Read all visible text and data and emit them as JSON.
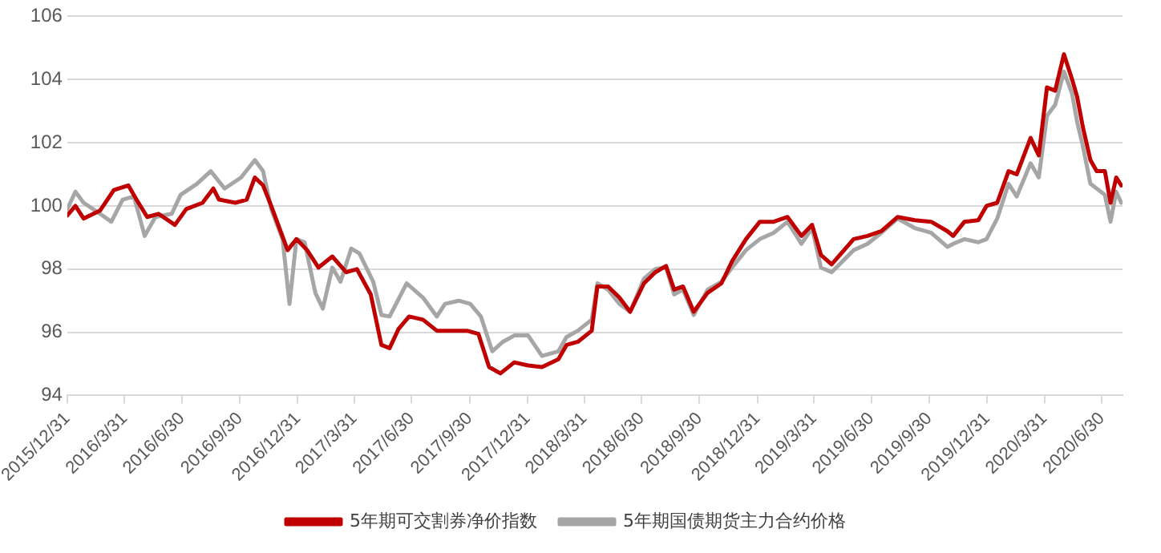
{
  "chart_data": {
    "type": "line",
    "xlim": [
      "2015-12-31",
      "2020-08-02"
    ],
    "xticks": [
      {
        "value": "2015-12-31",
        "label": "2015/12/31"
      },
      {
        "value": "2016-03-31",
        "label": "2016/3/31"
      },
      {
        "value": "2016-06-30",
        "label": "2016/6/30"
      },
      {
        "value": "2016-09-30",
        "label": "2016/9/30"
      },
      {
        "value": "2016-12-31",
        "label": "2016/12/31"
      },
      {
        "value": "2017-03-31",
        "label": "2017/3/31"
      },
      {
        "value": "2017-06-30",
        "label": "2017/6/30"
      },
      {
        "value": "2017-09-30",
        "label": "2017/9/30"
      },
      {
        "value": "2017-12-31",
        "label": "2017/12/31"
      },
      {
        "value": "2018-03-31",
        "label": "2018/3/31"
      },
      {
        "value": "2018-06-30",
        "label": "2018/6/30"
      },
      {
        "value": "2018-09-30",
        "label": "2018/9/30"
      },
      {
        "value": "2018-12-31",
        "label": "2018/12/31"
      },
      {
        "value": "2019-03-31",
        "label": "2019/3/31"
      },
      {
        "value": "2019-06-30",
        "label": "2019/6/30"
      },
      {
        "value": "2019-09-30",
        "label": "2019/9/30"
      },
      {
        "value": "2019-12-31",
        "label": "2019/12/31"
      },
      {
        "value": "2020-03-31",
        "label": "2020/3/31"
      },
      {
        "value": "2020-06-30",
        "label": "2020/6/30"
      }
    ],
    "ylim": [
      94,
      106
    ],
    "yticks": [
      94,
      96,
      98,
      100,
      102,
      104,
      106
    ],
    "grid": "y",
    "legend": "bottom",
    "marker": "none",
    "line_style": "solid",
    "series": [
      {
        "name": "5年期可交割券净价指数",
        "color": "#c00000",
        "x": [
          "2015-12-31",
          "2016-01-13",
          "2016-01-26",
          "2016-02-21",
          "2016-03-14",
          "2016-04-06",
          "2016-04-19",
          "2016-05-06",
          "2016-05-24",
          "2016-06-19",
          "2016-07-07",
          "2016-08-02",
          "2016-08-19",
          "2016-08-28",
          "2016-09-23",
          "2016-10-11",
          "2016-10-24",
          "2016-11-06",
          "2016-11-19",
          "2016-12-02",
          "2016-12-15",
          "2016-12-29",
          "2017-01-15",
          "2017-02-02",
          "2017-02-24",
          "2017-03-18",
          "2017-04-04",
          "2017-04-26",
          "2017-05-13",
          "2017-05-26",
          "2017-06-09",
          "2017-06-26",
          "2017-07-18",
          "2017-08-09",
          "2017-08-31",
          "2017-09-26",
          "2017-10-14",
          "2017-10-31",
          "2017-11-18",
          "2017-12-10",
          "2018-01-01",
          "2018-01-23",
          "2018-02-18",
          "2018-03-03",
          "2018-03-21",
          "2018-04-12",
          "2018-04-21",
          "2018-05-08",
          "2018-05-26",
          "2018-06-12",
          "2018-07-04",
          "2018-07-22",
          "2018-08-08",
          "2018-08-21",
          "2018-09-04",
          "2018-09-21",
          "2018-10-13",
          "2018-11-04",
          "2018-11-21",
          "2018-12-13",
          "2019-01-04",
          "2019-01-26",
          "2019-02-17",
          "2019-03-11",
          "2019-03-28",
          "2019-04-11",
          "2019-04-28",
          "2019-06-02",
          "2019-06-24",
          "2019-07-16",
          "2019-08-11",
          "2019-09-07",
          "2019-10-03",
          "2019-10-29",
          "2019-11-07",
          "2019-11-25",
          "2019-12-17",
          "2019-12-30",
          "2020-01-16",
          "2020-02-03",
          "2020-02-16",
          "2020-03-09",
          "2020-03-22",
          "2020-04-04",
          "2020-04-17",
          "2020-05-01",
          "2020-05-14",
          "2020-05-22",
          "2020-05-31",
          "2020-06-12",
          "2020-06-22",
          "2020-07-05",
          "2020-07-14",
          "2020-07-23",
          "2020-07-31"
        ],
        "values": [
          99.7,
          100.0,
          99.6,
          99.85,
          100.5,
          100.65,
          100.2,
          99.65,
          99.75,
          99.4,
          99.9,
          100.1,
          100.55,
          100.2,
          100.1,
          100.2,
          100.9,
          100.65,
          100.0,
          99.3,
          98.6,
          98.95,
          98.6,
          98.05,
          98.4,
          97.9,
          98.0,
          97.2,
          95.6,
          95.5,
          96.1,
          96.5,
          96.4,
          96.05,
          96.05,
          96.05,
          95.95,
          94.9,
          94.7,
          95.05,
          94.95,
          94.9,
          95.15,
          95.6,
          95.7,
          96.05,
          97.45,
          97.45,
          97.1,
          96.65,
          97.55,
          97.9,
          98.1,
          97.35,
          97.45,
          96.65,
          97.25,
          97.55,
          98.25,
          98.95,
          99.5,
          99.5,
          99.65,
          99.05,
          99.4,
          98.45,
          98.15,
          98.95,
          99.05,
          99.2,
          99.65,
          99.55,
          99.5,
          99.2,
          99.05,
          99.5,
          99.55,
          100.0,
          100.1,
          101.1,
          101.0,
          102.15,
          101.6,
          103.75,
          103.65,
          104.8,
          104.0,
          103.45,
          102.5,
          101.45,
          101.1,
          101.1,
          100.1,
          100.9,
          100.65
        ]
      },
      {
        "name": "5年期国债期货主力合约价格",
        "color": "#a6a6a6",
        "x": [
          "2015-12-31",
          "2016-01-13",
          "2016-01-26",
          "2016-02-21",
          "2016-03-10",
          "2016-03-28",
          "2016-04-15",
          "2016-05-02",
          "2016-05-19",
          "2016-06-14",
          "2016-06-28",
          "2016-07-24",
          "2016-08-15",
          "2016-09-06",
          "2016-10-02",
          "2016-10-24",
          "2016-11-06",
          "2016-11-19",
          "2016-12-07",
          "2016-12-18",
          "2016-12-29",
          "2017-01-11",
          "2017-01-28",
          "2017-02-09",
          "2017-02-24",
          "2017-03-09",
          "2017-03-26",
          "2017-04-08",
          "2017-04-30",
          "2017-05-13",
          "2017-05-26",
          "2017-06-22",
          "2017-07-18",
          "2017-08-09",
          "2017-08-22",
          "2017-09-13",
          "2017-10-01",
          "2017-10-18",
          "2017-11-05",
          "2017-11-22",
          "2017-12-10",
          "2018-01-01",
          "2018-01-23",
          "2018-02-18",
          "2018-03-03",
          "2018-03-21",
          "2018-04-12",
          "2018-04-21",
          "2018-05-08",
          "2018-05-26",
          "2018-06-12",
          "2018-07-04",
          "2018-07-22",
          "2018-08-08",
          "2018-08-21",
          "2018-09-04",
          "2018-09-21",
          "2018-10-13",
          "2018-11-04",
          "2018-11-21",
          "2018-12-13",
          "2019-01-04",
          "2019-01-26",
          "2019-02-17",
          "2019-03-11",
          "2019-03-28",
          "2019-04-11",
          "2019-04-28",
          "2019-06-02",
          "2019-06-24",
          "2019-07-16",
          "2019-08-11",
          "2019-09-07",
          "2019-10-03",
          "2019-10-29",
          "2019-11-07",
          "2019-11-25",
          "2019-12-17",
          "2019-12-30",
          "2020-01-16",
          "2020-02-03",
          "2020-02-16",
          "2020-03-09",
          "2020-03-22",
          "2020-04-04",
          "2020-04-17",
          "2020-05-01",
          "2020-05-14",
          "2020-05-22",
          "2020-05-31",
          "2020-06-12",
          "2020-06-22",
          "2020-07-05",
          "2020-07-14",
          "2020-07-23",
          "2020-07-31"
        ],
        "values": [
          99.9,
          100.45,
          100.1,
          99.75,
          99.5,
          100.2,
          100.3,
          99.05,
          99.65,
          99.75,
          100.35,
          100.7,
          101.1,
          100.55,
          100.9,
          101.45,
          101.1,
          99.9,
          98.95,
          96.9,
          98.95,
          98.85,
          97.25,
          96.75,
          98.05,
          97.6,
          98.65,
          98.5,
          97.6,
          96.55,
          96.5,
          97.55,
          97.1,
          96.5,
          96.9,
          97.0,
          96.9,
          96.5,
          95.4,
          95.7,
          95.9,
          95.9,
          95.25,
          95.4,
          95.85,
          96.05,
          96.4,
          97.55,
          97.35,
          96.9,
          96.65,
          97.7,
          98.0,
          98.05,
          97.2,
          97.35,
          96.55,
          97.35,
          97.6,
          98.05,
          98.6,
          98.95,
          99.15,
          99.5,
          98.8,
          99.3,
          98.05,
          97.9,
          98.6,
          98.8,
          99.15,
          99.6,
          99.3,
          99.15,
          98.7,
          98.8,
          98.95,
          98.85,
          98.95,
          99.6,
          100.7,
          100.3,
          101.35,
          100.9,
          102.85,
          103.2,
          104.25,
          103.55,
          102.65,
          101.9,
          100.7,
          100.55,
          100.35,
          99.5,
          100.45,
          100.1
        ]
      }
    ]
  }
}
